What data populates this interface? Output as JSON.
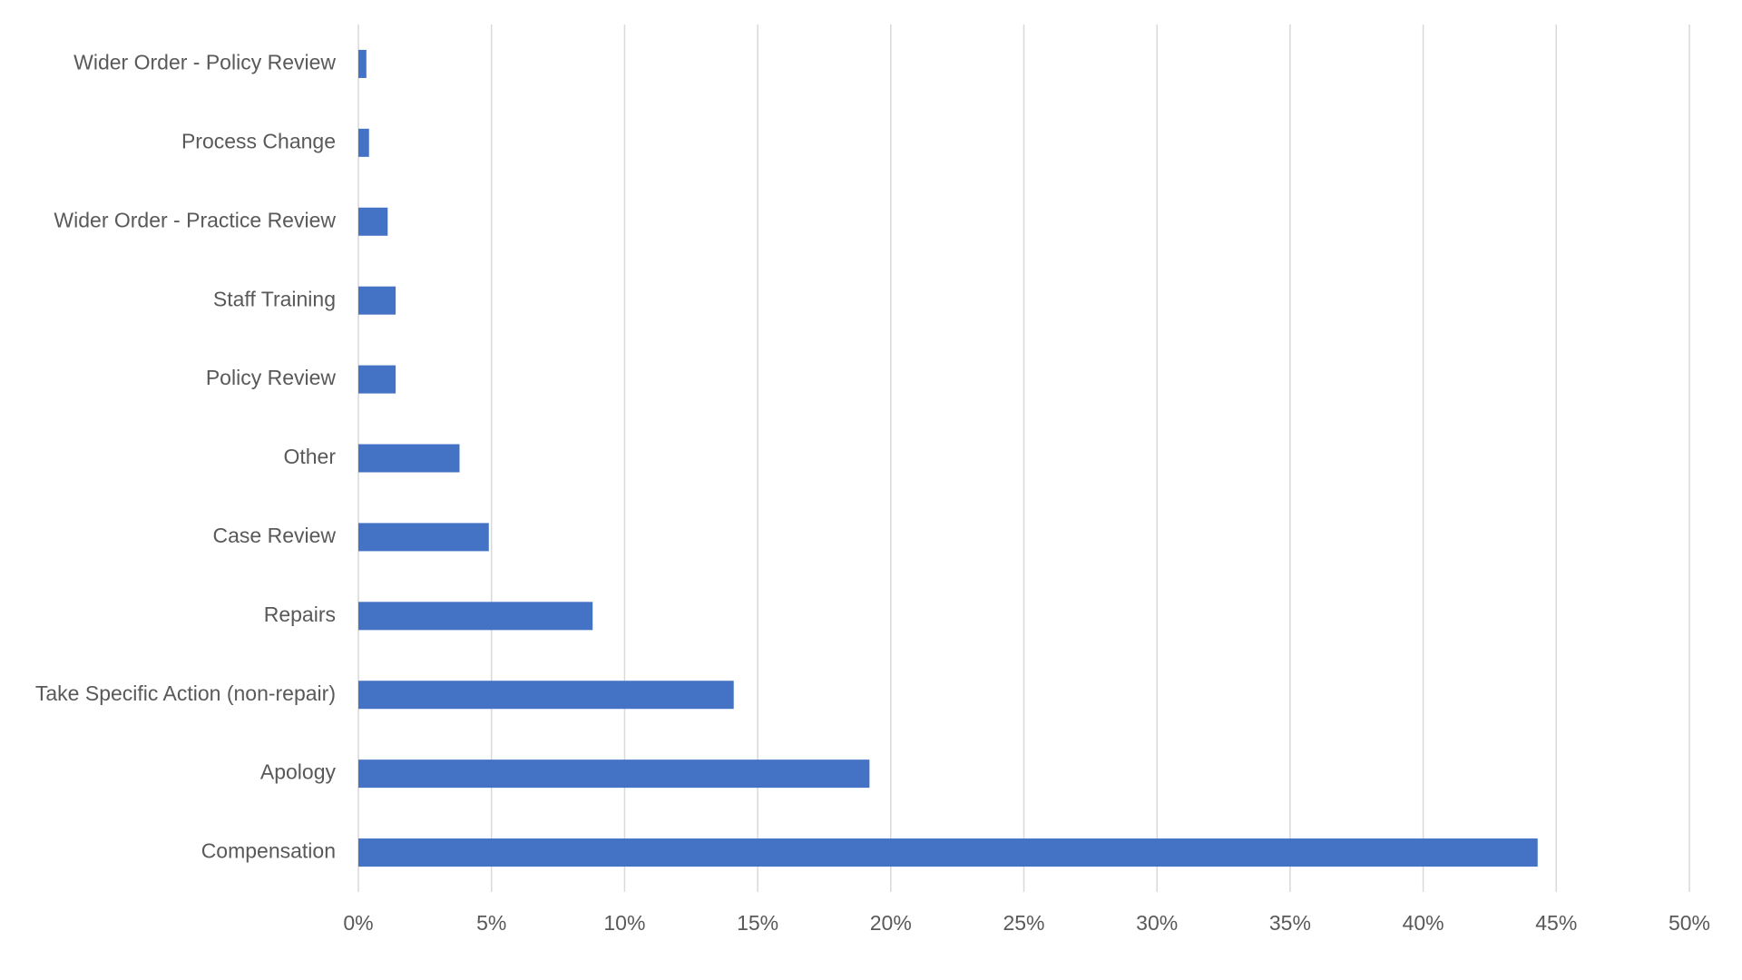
{
  "chart_data": {
    "type": "bar",
    "orientation": "horizontal",
    "categories": [
      "Wider Order - Policy Review",
      "Process Change",
      "Wider Order - Practice Review",
      "Staff Training",
      "Policy Review",
      "Other",
      "Case Review",
      "Repairs",
      "Take Specific Action (non-repair)",
      "Apology",
      "Compensation"
    ],
    "values": [
      0.3,
      0.4,
      1.1,
      1.4,
      1.4,
      3.8,
      4.9,
      8.8,
      14.1,
      19.2,
      44.3
    ],
    "color": "#4472c4",
    "xlim": [
      0,
      50
    ],
    "xticks": [
      {
        "value": 0,
        "label": "0%"
      },
      {
        "value": 5,
        "label": "5%"
      },
      {
        "value": 10,
        "label": "10%"
      },
      {
        "value": 15,
        "label": "15%"
      },
      {
        "value": 20,
        "label": "20%"
      },
      {
        "value": 25,
        "label": "25%"
      },
      {
        "value": 30,
        "label": "30%"
      },
      {
        "value": 35,
        "label": "35%"
      },
      {
        "value": 40,
        "label": "40%"
      },
      {
        "value": 45,
        "label": "45%"
      },
      {
        "value": 50,
        "label": "50%"
      }
    ],
    "grid": true
  }
}
